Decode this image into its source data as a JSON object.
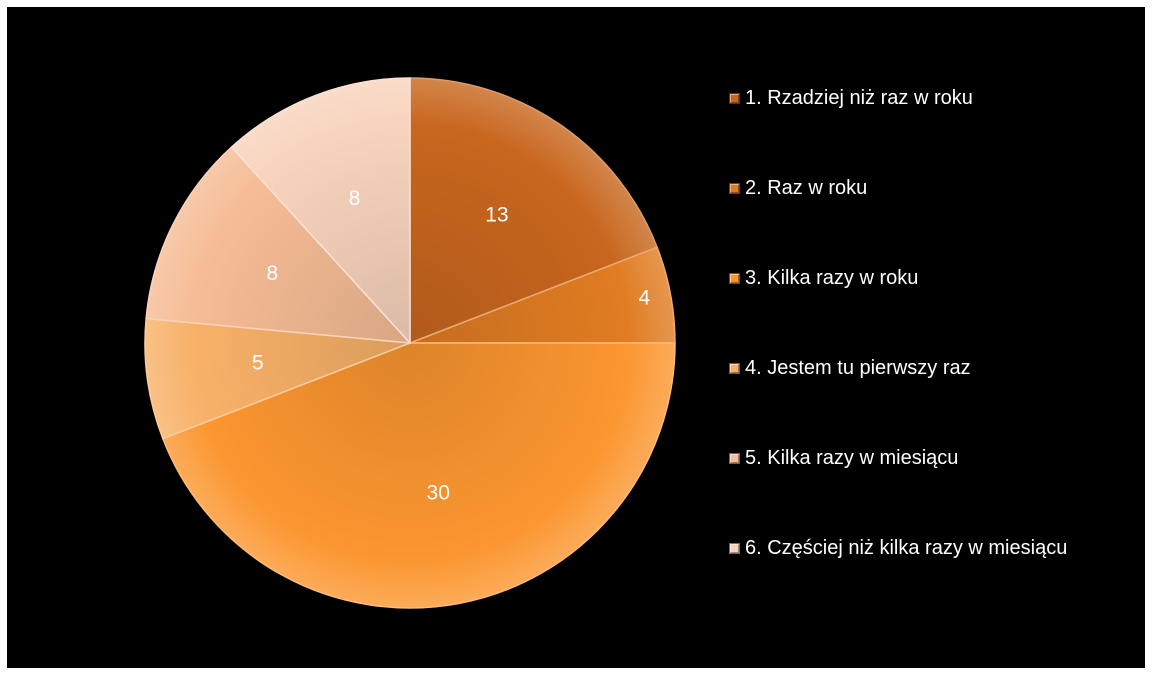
{
  "chart_data": {
    "type": "pie",
    "title": "",
    "legend_position": "right",
    "start_angle": "12 o'clock, clockwise",
    "series": [
      {
        "values": [
          13,
          4,
          30,
          5,
          8,
          8
        ],
        "labels": [
          "1. Rzadziej niż raz w roku",
          "2. Raz w roku",
          "3. Kilka razy w roku",
          "4. Jestem tu pierwszy raz",
          "5. Kilka razy w miesiącu",
          "6. Częściej niż kilka razy w miesiącu"
        ],
        "colors": [
          "#c8661e",
          "#e07c22",
          "#fb9630",
          "#f8b168",
          "#f5bc95",
          "#f8d3bd"
        ]
      }
    ]
  },
  "legend": {
    "items": [
      {
        "label": "1. Rzadziej niż raz w roku",
        "color": "#c8661e"
      },
      {
        "label": "2. Raz w roku",
        "color": "#e07c22"
      },
      {
        "label": "3. Kilka razy w roku",
        "color": "#fb9630"
      },
      {
        "label": "4. Jestem tu pierwszy raz",
        "color": "#f8b168"
      },
      {
        "label": "5. Kilka razy w miesiącu",
        "color": "#f5bc95"
      },
      {
        "label": "6. Częściej niż kilka razy w miesiącu",
        "color": "#f8d3bd"
      }
    ]
  }
}
